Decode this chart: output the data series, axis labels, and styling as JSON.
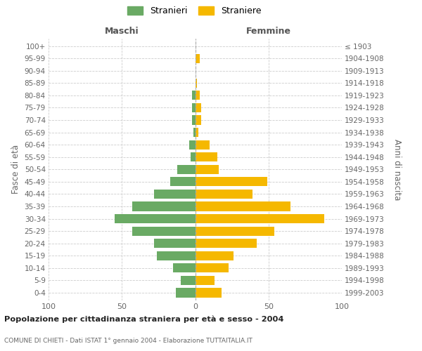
{
  "age_groups": [
    "0-4",
    "5-9",
    "10-14",
    "15-19",
    "20-24",
    "25-29",
    "30-34",
    "35-39",
    "40-44",
    "45-49",
    "50-54",
    "55-59",
    "60-64",
    "65-69",
    "70-74",
    "75-79",
    "80-84",
    "85-89",
    "90-94",
    "95-99",
    "100+"
  ],
  "birth_years": [
    "1999-2003",
    "1994-1998",
    "1989-1993",
    "1984-1988",
    "1979-1983",
    "1974-1978",
    "1969-1973",
    "1964-1968",
    "1959-1963",
    "1954-1958",
    "1949-1953",
    "1944-1948",
    "1939-1943",
    "1934-1938",
    "1929-1933",
    "1924-1928",
    "1919-1923",
    "1914-1918",
    "1909-1913",
    "1904-1908",
    "≤ 1903"
  ],
  "maschi": [
    13,
    10,
    15,
    26,
    28,
    43,
    55,
    43,
    28,
    17,
    12,
    3,
    4,
    1,
    2,
    2,
    2,
    0,
    0,
    0,
    0
  ],
  "femmine": [
    18,
    13,
    23,
    26,
    42,
    54,
    88,
    65,
    39,
    49,
    16,
    15,
    10,
    2,
    4,
    4,
    3,
    1,
    0,
    3,
    0
  ],
  "color_maschi": "#6aaa64",
  "color_femmine": "#f5b800",
  "background_color": "#ffffff",
  "grid_color": "#cccccc",
  "title": "Popolazione per cittadinanza straniera per età e sesso - 2004",
  "subtitle": "COMUNE DI CHIETI - Dati ISTAT 1° gennaio 2004 - Elaborazione TUTTAITALIA.IT",
  "header_maschi": "Maschi",
  "header_femmine": "Femmine",
  "ylabel_left": "Fasce di età",
  "ylabel_right": "Anni di nascita",
  "legend_maschi": "Stranieri",
  "legend_femmine": "Straniere",
  "xlim": 100
}
